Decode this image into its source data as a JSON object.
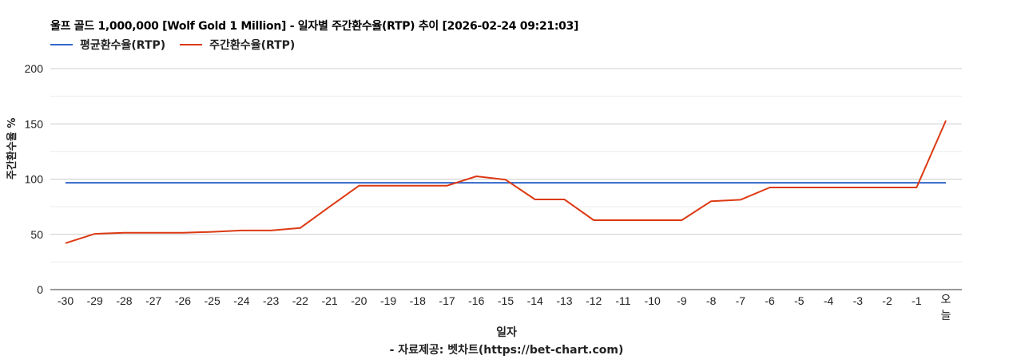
{
  "chart_data": {
    "type": "line",
    "title": "울프 골드 1,000,000 [Wolf Gold 1 Million] - 일자별 주간환수율(RTP) 추이 [2026-02-24 09:21:03]",
    "xlabel": "일자",
    "ylabel": "주간환수율 %",
    "credit": "- 자료제공: 벳차트(https://bet-chart.com)",
    "categories": [
      "-30",
      "-29",
      "-28",
      "-27",
      "-26",
      "-25",
      "-24",
      "-23",
      "-22",
      "-21",
      "-20",
      "-19",
      "-18",
      "-17",
      "-16",
      "-15",
      "-14",
      "-13",
      "-12",
      "-11",
      "-10",
      "-9",
      "-8",
      "-7",
      "-6",
      "-5",
      "-4",
      "-3",
      "-2",
      "-1",
      "오늘"
    ],
    "series": [
      {
        "name": "평균환수율(RTP)",
        "color": "#3366cc",
        "values": [
          96.7,
          96.7,
          96.7,
          96.7,
          96.7,
          96.7,
          96.7,
          96.7,
          96.7,
          96.7,
          96.7,
          96.7,
          96.7,
          96.7,
          96.7,
          96.7,
          96.7,
          96.7,
          96.7,
          96.7,
          96.7,
          96.7,
          96.7,
          96.7,
          96.7,
          96.7,
          96.7,
          96.7,
          96.7,
          96.7,
          96.7
        ]
      },
      {
        "name": "주간환수율(RTP)",
        "color": "#dc3912",
        "values": [
          42,
          50.5,
          51.5,
          51.5,
          51.5,
          52.3,
          53.5,
          53.5,
          55.8,
          75,
          94,
          94,
          94,
          94,
          102.5,
          99.4,
          81.6,
          81.6,
          62.8,
          62.8,
          62.8,
          62.8,
          80,
          81.3,
          92.4,
          92.4,
          92.4,
          92.4,
          92.4,
          92.4,
          153
        ]
      }
    ],
    "yticks": [
      0,
      50,
      100,
      150,
      200
    ],
    "ylim": [
      0,
      200
    ],
    "minor_gridlines": [
      25,
      75,
      125,
      175
    ],
    "grid": true,
    "legend_position": "top"
  },
  "legend": {
    "items": [
      {
        "label": "평균환수율(RTP)",
        "color": "#3366cc"
      },
      {
        "label": "주간환수율(RTP)",
        "color": "#dc3912"
      }
    ]
  }
}
